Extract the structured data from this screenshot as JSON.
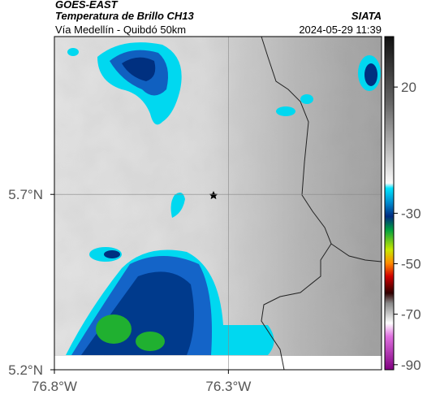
{
  "header": {
    "title": "GOES-EAST",
    "subtitle": "Temperatura de Brillo CH13",
    "source": "SIATA",
    "location": "Vía Medellín - Quibdó 50km",
    "timestamp": "2024-05-29 11:39"
  },
  "map": {
    "xlim": [
      -76.8,
      -75.86
    ],
    "ylim": [
      5.2,
      6.15
    ],
    "xticks": [
      {
        "value": -76.8,
        "label": "76.8°W"
      },
      {
        "value": -76.3,
        "label": "76.3°W"
      }
    ],
    "yticks": [
      {
        "value": 5.2,
        "label": "5.2°N"
      },
      {
        "value": 5.7,
        "label": "5.7°N"
      }
    ],
    "grid": true
  },
  "colorbar": {
    "clim": [
      40,
      -92
    ],
    "ticks": [
      20,
      -30,
      -50,
      -70,
      -90
    ]
  }
}
